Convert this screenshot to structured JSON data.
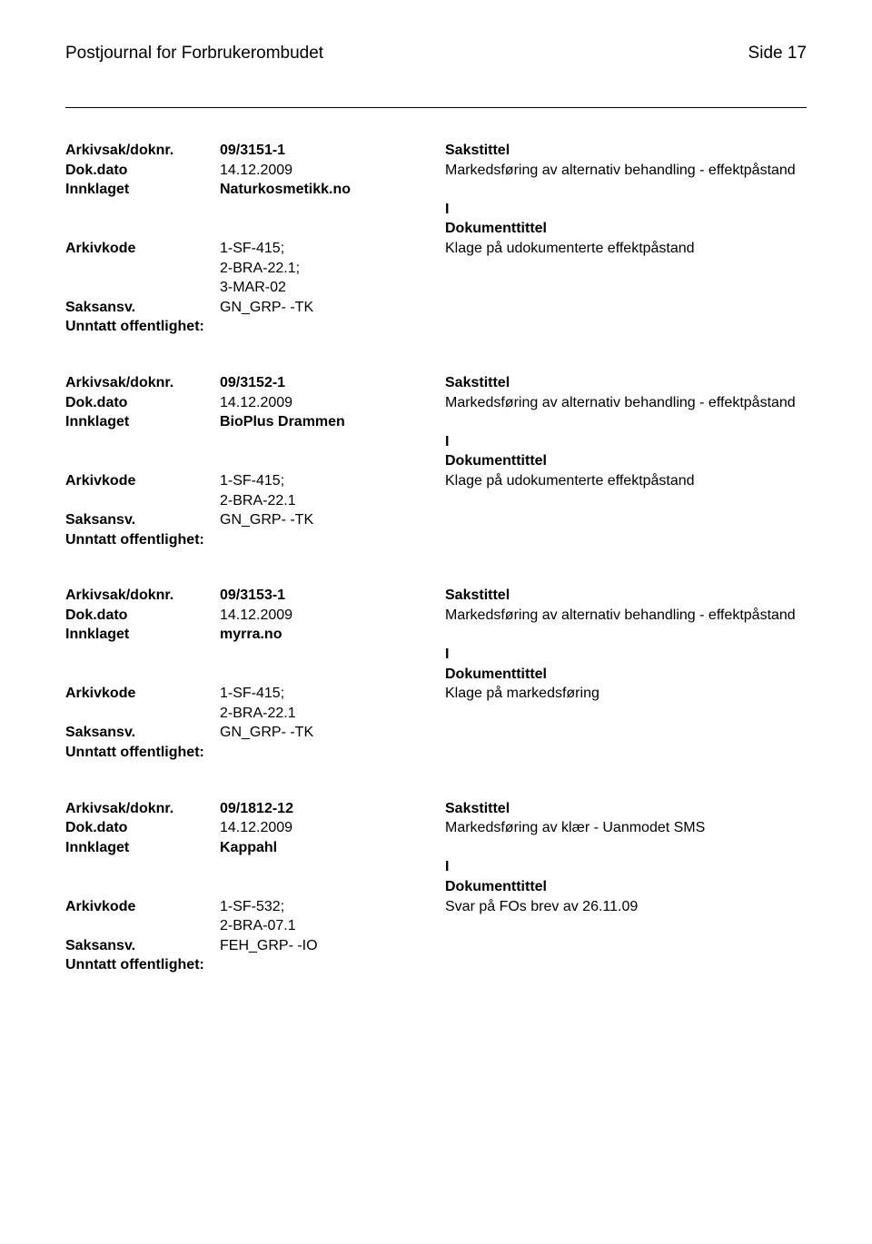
{
  "header": {
    "left": "Postjournal for Forbrukerombudet",
    "right": "Side 17"
  },
  "labels": {
    "arkivsak": "Arkivsak/doknr.",
    "dokdato": "Dok.dato",
    "innklaget": "Innklaget",
    "arkivkode": "Arkivkode",
    "saksansv": "Saksansv.",
    "unntatt": "Unntatt offentlighet:",
    "sakstittel": "Sakstittel",
    "dokumenttittel": "Dokumenttittel"
  },
  "records": [
    {
      "arkivsak": "09/3151-1",
      "dokdato": "14.12.2009",
      "sakstittel_text": "Markedsføring av alternativ behandling - effektpåstand",
      "innklaget": "Naturkosmetikk.no",
      "doc_type": "I",
      "arkivkode": "1-SF-415;\n2-BRA-22.1;\n3-MAR-02",
      "dokumenttittel_text": "Klage på udokumenterte effektpåstand",
      "saksansv": "GN_GRP- -TK",
      "unntatt": ""
    },
    {
      "arkivsak": "09/3152-1",
      "dokdato": "14.12.2009",
      "sakstittel_text": "Markedsføring av alternativ behandling - effektpåstand",
      "innklaget": "BioPlus Drammen",
      "doc_type": "I",
      "arkivkode": "1-SF-415;\n2-BRA-22.1",
      "dokumenttittel_text": "Klage på udokumenterte effektpåstand",
      "saksansv": "GN_GRP- -TK",
      "unntatt": ""
    },
    {
      "arkivsak": "09/3153-1",
      "dokdato": "14.12.2009",
      "sakstittel_text": "Markedsføring av alternativ behandling - effektpåstand",
      "innklaget": "myrra.no",
      "doc_type": "I",
      "arkivkode": "1-SF-415;\n2-BRA-22.1",
      "dokumenttittel_text": "Klage på markedsføring",
      "saksansv": "GN_GRP- -TK",
      "unntatt": ""
    },
    {
      "arkivsak": "09/1812-12",
      "dokdato": "14.12.2009",
      "sakstittel_text": "Markedsføring av klær  - Uanmodet SMS",
      "innklaget": "Kappahl",
      "doc_type": "I",
      "arkivkode": "1-SF-532;\n2-BRA-07.1",
      "dokumenttittel_text": "Svar på FOs brev av 26.11.09",
      "saksansv": "FEH_GRP- -IO",
      "unntatt": ""
    }
  ]
}
